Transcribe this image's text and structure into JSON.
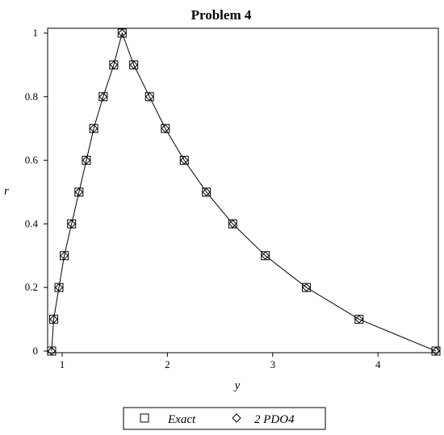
{
  "chart_data": {
    "type": "scatter",
    "title": "Problem 4",
    "xlabel": "y",
    "ylabel": "r",
    "xlim": [
      0.87,
      4.55
    ],
    "ylim": [
      0,
      1
    ],
    "x_ticks": [
      1,
      2,
      3,
      4
    ],
    "y_ticks": [
      0,
      0.2,
      0.4,
      0.6,
      0.8,
      1
    ],
    "x_tick_labels": [
      "1",
      "2",
      "3",
      "4"
    ],
    "y_tick_labels": [
      "0",
      "0.2",
      "0.4",
      "0.6",
      "0.8",
      "1"
    ],
    "grid": false,
    "legend_position": "bottom",
    "curve": {
      "x": [
        0.9,
        0.92,
        0.97,
        1.02,
        1.09,
        1.16,
        1.23,
        1.3,
        1.39,
        1.49,
        1.57,
        1.68,
        1.83,
        1.98,
        2.16,
        2.37,
        2.62,
        2.93,
        3.32,
        3.82,
        4.55
      ],
      "r": [
        0.0,
        0.1,
        0.2,
        0.3,
        0.4,
        0.5,
        0.6,
        0.7,
        0.8,
        0.9,
        1.0,
        0.9,
        0.8,
        0.7,
        0.6,
        0.5,
        0.4,
        0.3,
        0.2,
        0.1,
        0.0
      ]
    },
    "series": [
      {
        "name": "Exact",
        "marker": "square",
        "x": [
          0.9,
          0.92,
          0.97,
          1.02,
          1.09,
          1.16,
          1.23,
          1.3,
          1.39,
          1.49,
          1.57,
          1.68,
          1.83,
          1.98,
          2.16,
          2.37,
          2.62,
          2.93,
          3.32,
          3.82,
          4.55
        ],
        "r": [
          0.0,
          0.1,
          0.2,
          0.3,
          0.4,
          0.5,
          0.6,
          0.7,
          0.8,
          0.9,
          1.0,
          0.9,
          0.8,
          0.7,
          0.6,
          0.5,
          0.4,
          0.3,
          0.2,
          0.1,
          0.0
        ]
      },
      {
        "name": "2 PDO4",
        "marker": "diamond",
        "x": [
          0.9,
          0.92,
          0.97,
          1.02,
          1.09,
          1.16,
          1.23,
          1.3,
          1.39,
          1.49,
          1.57,
          1.68,
          1.83,
          1.98,
          2.16,
          2.37,
          2.62,
          2.93,
          3.32,
          3.82,
          4.55
        ],
        "r": [
          0.0,
          0.1,
          0.2,
          0.3,
          0.4,
          0.5,
          0.6,
          0.7,
          0.8,
          0.9,
          1.0,
          0.9,
          0.8,
          0.7,
          0.6,
          0.5,
          0.4,
          0.3,
          0.2,
          0.1,
          0.0
        ]
      }
    ],
    "colors": {
      "line": "#000000",
      "background": "#ffffff"
    }
  }
}
